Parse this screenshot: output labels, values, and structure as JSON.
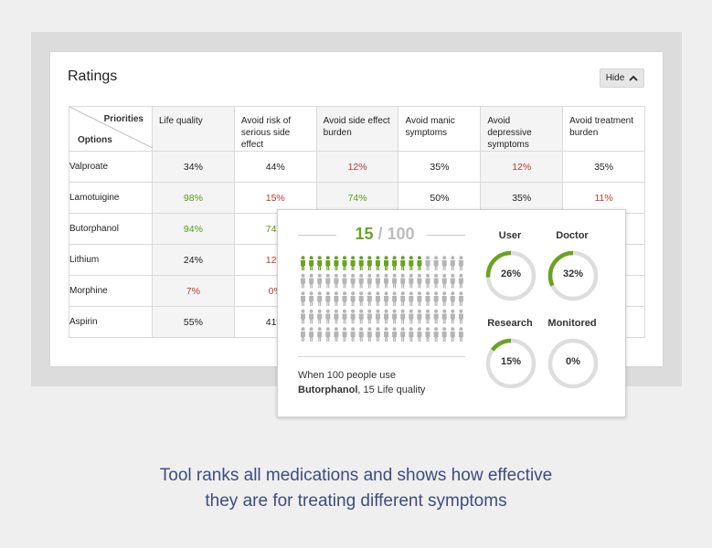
{
  "card": {
    "title": "Ratings",
    "hide_label": "Hide"
  },
  "table": {
    "corner_top": "Priorities",
    "corner_bottom": "Options",
    "columns": [
      "Life quality",
      "Avoid risk of serious side effect",
      "Avoid side effect burden",
      "Avoid manic symptoms",
      "Avoid depressive symptoms",
      "Avoid treatment burden"
    ],
    "rows": [
      {
        "name": "Valproate",
        "cells": [
          {
            "v": "34%",
            "c": "black"
          },
          {
            "v": "44%",
            "c": "black"
          },
          {
            "v": "12%",
            "c": "red"
          },
          {
            "v": "35%",
            "c": "black"
          },
          {
            "v": "12%",
            "c": "red"
          },
          {
            "v": "35%",
            "c": "black"
          }
        ]
      },
      {
        "name": "Lamotuigine",
        "cells": [
          {
            "v": "98%",
            "c": "green"
          },
          {
            "v": "15%",
            "c": "red"
          },
          {
            "v": "74%",
            "c": "green"
          },
          {
            "v": "50%",
            "c": "black"
          },
          {
            "v": "35%",
            "c": "black"
          },
          {
            "v": "11%",
            "c": "red"
          }
        ]
      },
      {
        "name": "Butorphanol",
        "cells": [
          {
            "v": "94%",
            "c": "green"
          },
          {
            "v": "74%",
            "c": "green"
          },
          {
            "v": "",
            "c": "black"
          },
          {
            "v": "",
            "c": "black"
          },
          {
            "v": "",
            "c": "black"
          },
          {
            "v": "",
            "c": "black"
          }
        ]
      },
      {
        "name": "Lithium",
        "cells": [
          {
            "v": "24%",
            "c": "black"
          },
          {
            "v": "12%",
            "c": "red"
          },
          {
            "v": "",
            "c": "black"
          },
          {
            "v": "",
            "c": "black"
          },
          {
            "v": "",
            "c": "black"
          },
          {
            "v": "",
            "c": "black"
          }
        ]
      },
      {
        "name": "Morphine",
        "cells": [
          {
            "v": "7%",
            "c": "red"
          },
          {
            "v": "0%",
            "c": "red"
          },
          {
            "v": "",
            "c": "black"
          },
          {
            "v": "",
            "c": "black"
          },
          {
            "v": "",
            "c": "black"
          },
          {
            "v": "",
            "c": "black"
          }
        ]
      },
      {
        "name": "Aspirin",
        "cells": [
          {
            "v": "55%",
            "c": "black"
          },
          {
            "v": "41%",
            "c": "black"
          },
          {
            "v": "",
            "c": "black"
          },
          {
            "v": "",
            "c": "black"
          },
          {
            "v": "",
            "c": "black"
          },
          {
            "v": "",
            "c": "black"
          }
        ]
      }
    ]
  },
  "popup": {
    "score_num": "15",
    "score_total": "/ 100",
    "people_total": 100,
    "people_highlighted": 15,
    "caption_line1": "When 100 people use",
    "caption_drug": "Butorphanol",
    "caption_rest": ", 15 Life quality",
    "gauges": [
      {
        "label": "User",
        "value": "26%",
        "pct": 26
      },
      {
        "label": "Doctor",
        "value": "32%",
        "pct": 32
      },
      {
        "label": "Research",
        "value": "15%",
        "pct": 15
      },
      {
        "label": "Monitored",
        "value": "0%",
        "pct": 0
      }
    ]
  },
  "tagline": {
    "line1": "Tool ranks all medications and shows how effective",
    "line2": "they are for treating different symptoms"
  },
  "colors": {
    "green": "#5a9b14",
    "red": "#c0392b",
    "accent_green": "#6aa31f",
    "gauge_track": "#dddddd",
    "tagline": "#3d4c80"
  }
}
